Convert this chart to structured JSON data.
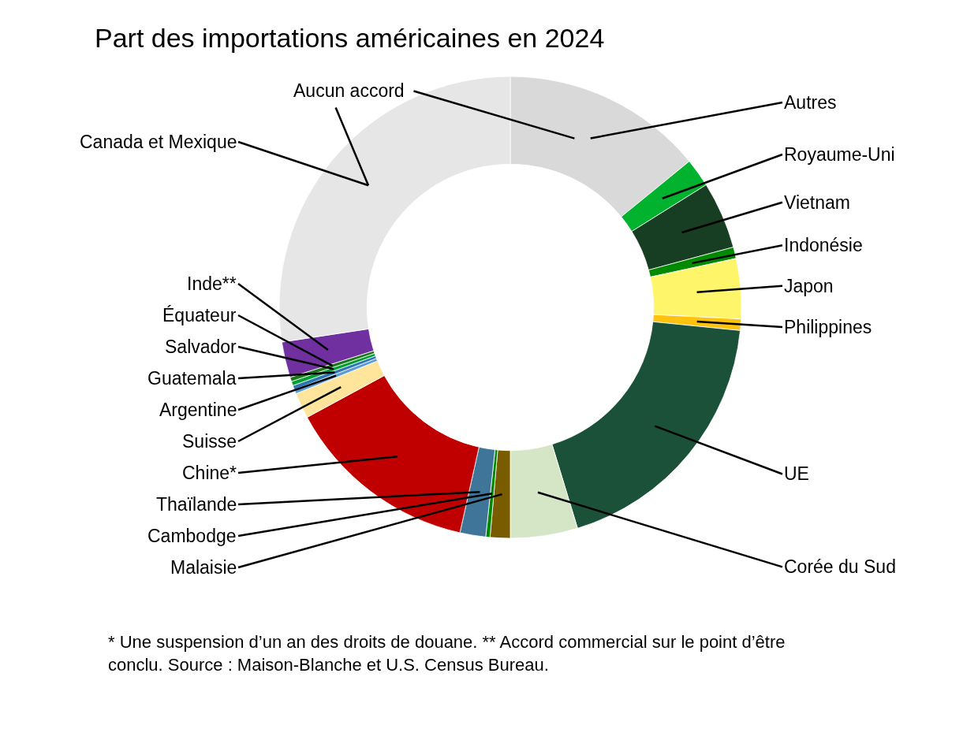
{
  "chart_data": {
    "type": "donut",
    "title": "Part des importations américaines en 2024",
    "categories": [
      "Autres",
      "Royaume-Uni",
      "Vietnam",
      "Indonésie",
      "Japon",
      "Philippines",
      "UE",
      "Corée du Sud",
      "Malaisie",
      "Cambodge",
      "Thaïlande",
      "Chine*",
      "Suisse",
      "Argentine",
      "Guatemala",
      "Salvador",
      "Équateur",
      "Inde**",
      "Canada et Mexique"
    ],
    "values": [
      14.1,
      2,
      4.7,
      0.8,
      4.2,
      0.8,
      18.7,
      4.7,
      1.4,
      0.3,
      1.8,
      13.6,
      1.8,
      0.3,
      0.3,
      0.3,
      0.3,
      2.5,
      27.4
    ],
    "colors": [
      "#d9d9d9",
      "#00b22d",
      "#173d22",
      "#008a00",
      "#fff56a",
      "#ffc20e",
      "#1b5138",
      "#d4e6c5",
      "#7a5c00",
      "#008a00",
      "#3e7599",
      "#c00000",
      "#ffe59c",
      "#5b9bd5",
      "#2e75b6",
      "#00a030",
      "#1a7a1a",
      "#7030a0",
      "#e6e6e6"
    ],
    "annotations": [
      "Aucun accord",
      "* Une suspension d’un an des droits de douane. ** Accord commercial sur le point d’être conclu. Source : Maison-Blanche et U.S. Census Bureau."
    ]
  }
}
